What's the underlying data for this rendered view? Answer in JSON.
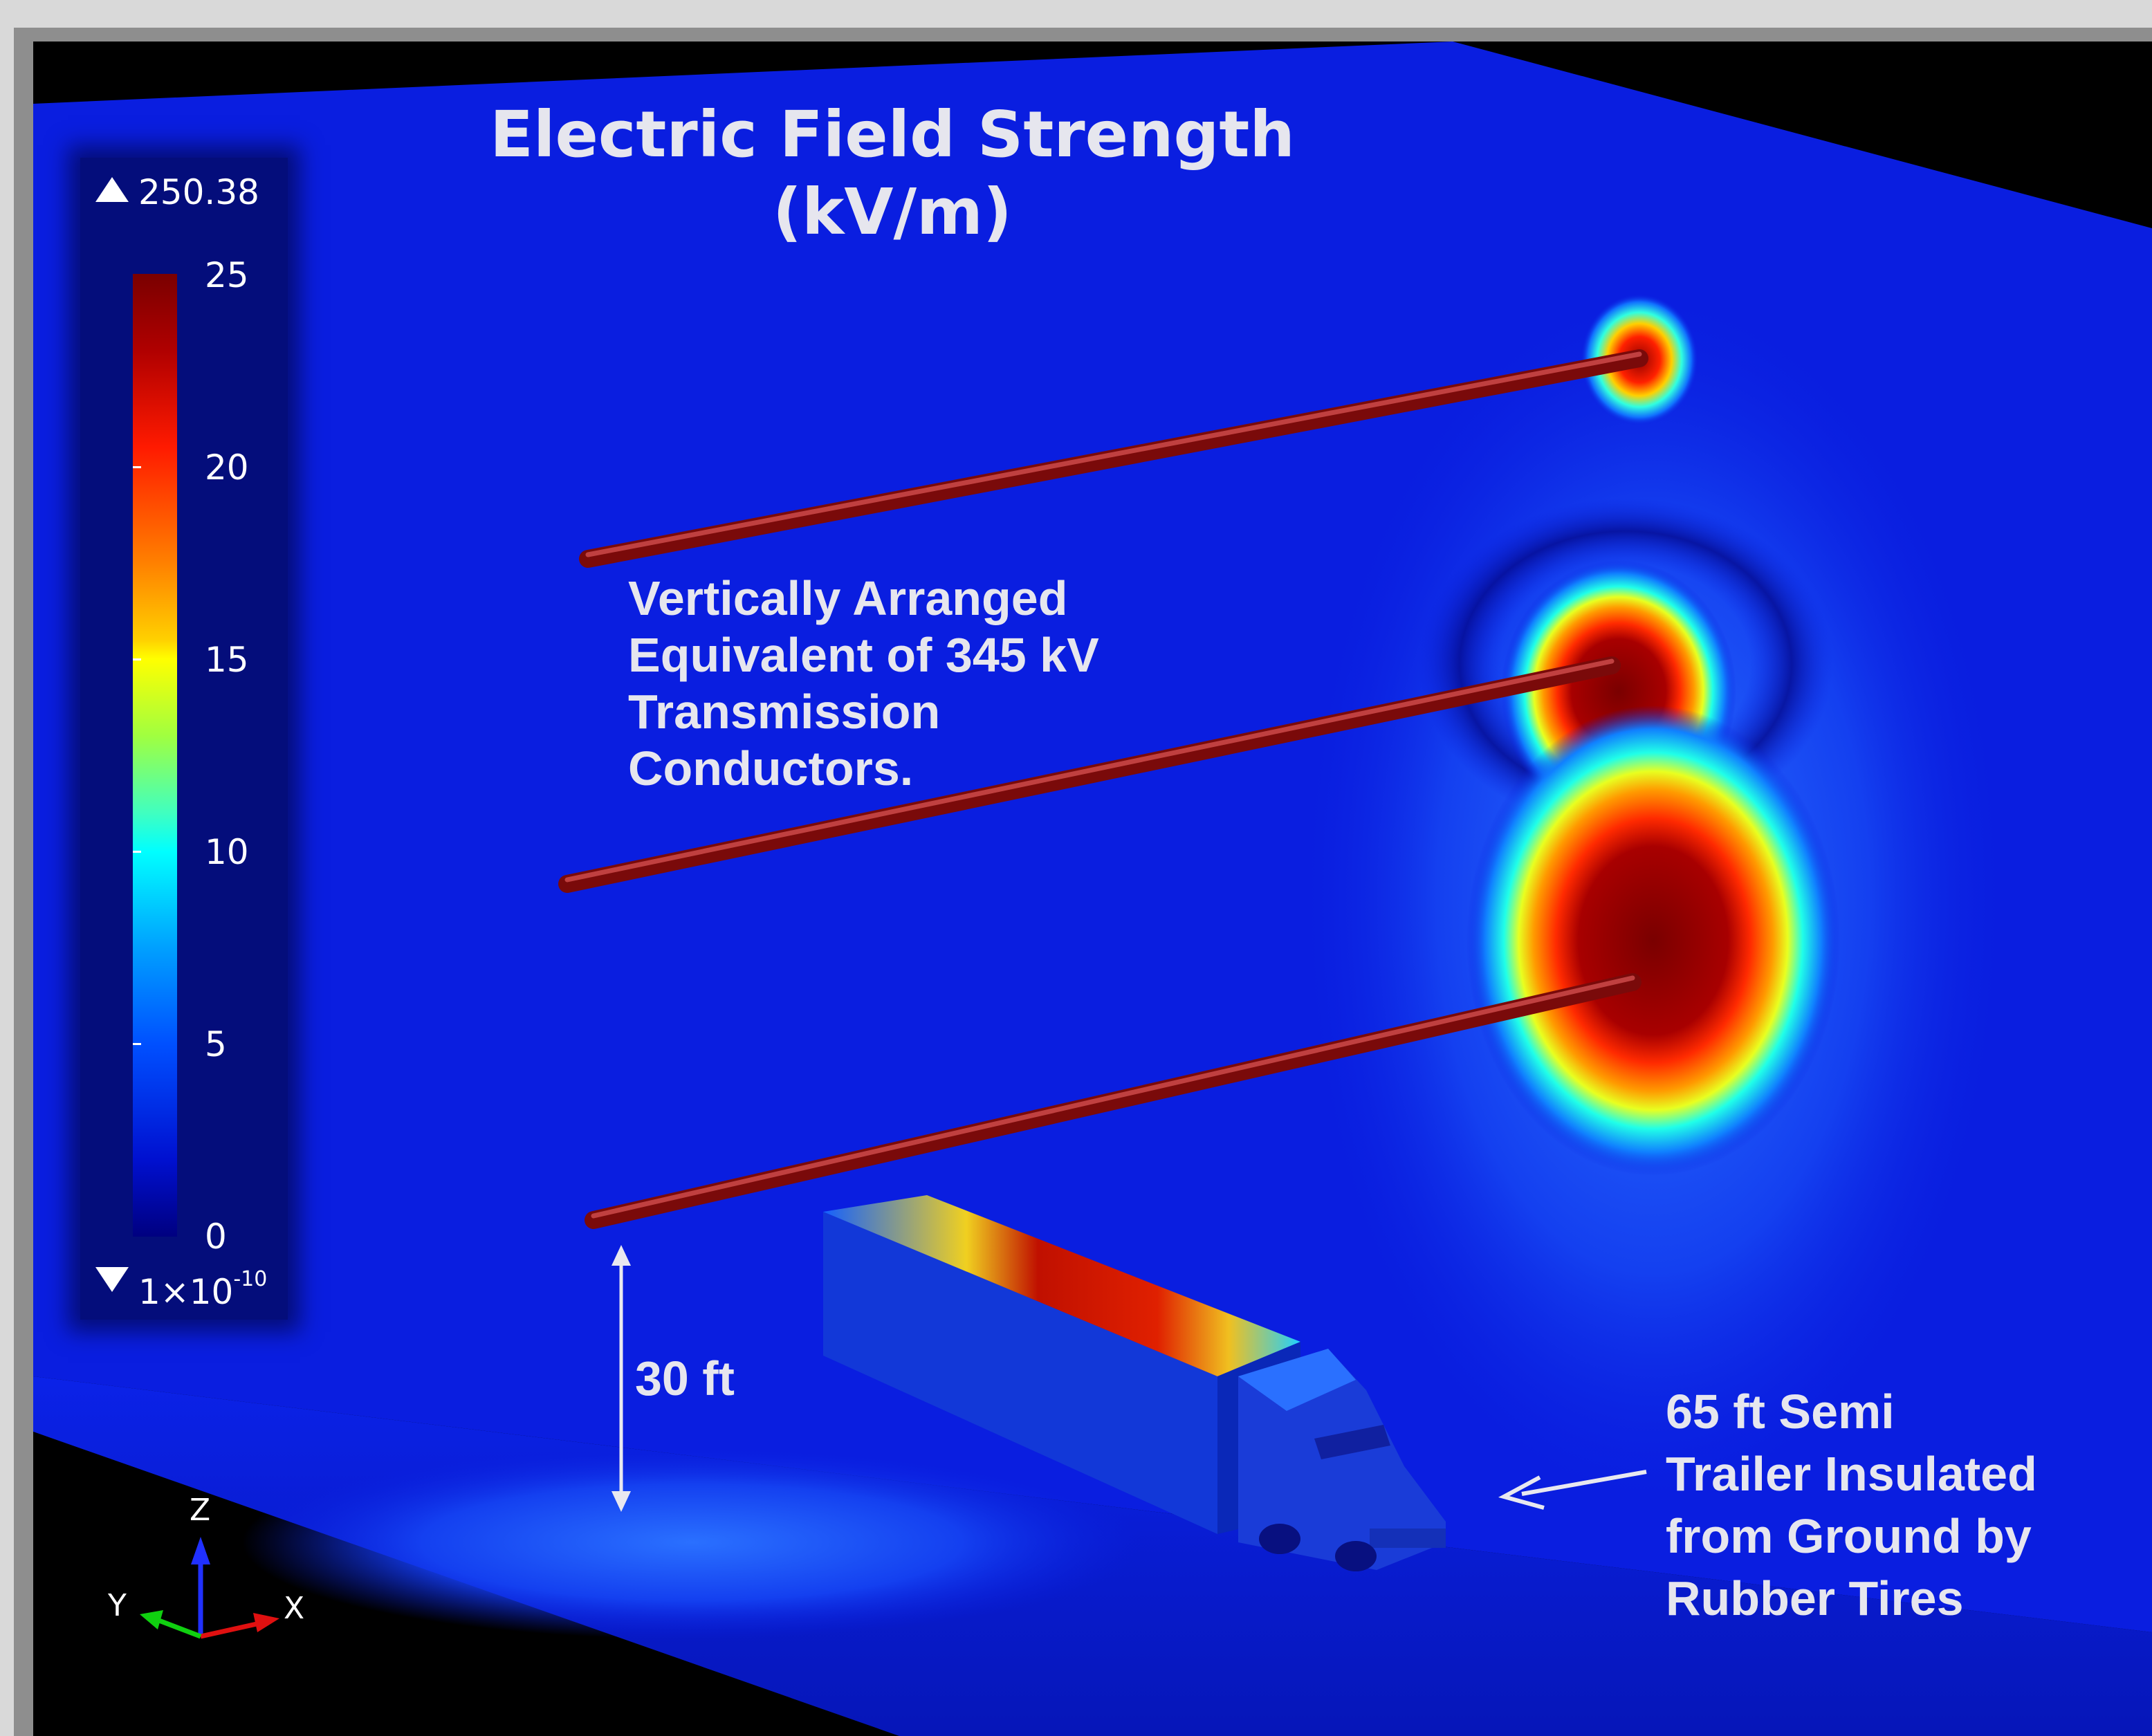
{
  "title": {
    "line1": "Electric Field Strength",
    "line2": "(kV/m)"
  },
  "legend": {
    "max_label": "250.38",
    "min_base": "1×10",
    "min_exponent": "-10",
    "ticks": [
      "25",
      "20",
      "15",
      "10",
      "5",
      "0"
    ],
    "colormap": "rainbow (dark blue → red)"
  },
  "annotations": {
    "conductors": [
      "Vertically Arranged",
      "Equivalent of 345 kV",
      "Transmission",
      "Conductors."
    ],
    "height": "30 ft",
    "trailer": [
      "65 ft Semi",
      "Trailer Insulated",
      "from Ground by",
      "Rubber Tires"
    ]
  },
  "axes": {
    "z": "Z",
    "y": "Y",
    "x": "X"
  },
  "colors": {
    "background_field": "#0a1ee0",
    "conductor": "#8a1010",
    "hotspot": "#b00000",
    "void": "#000000"
  }
}
